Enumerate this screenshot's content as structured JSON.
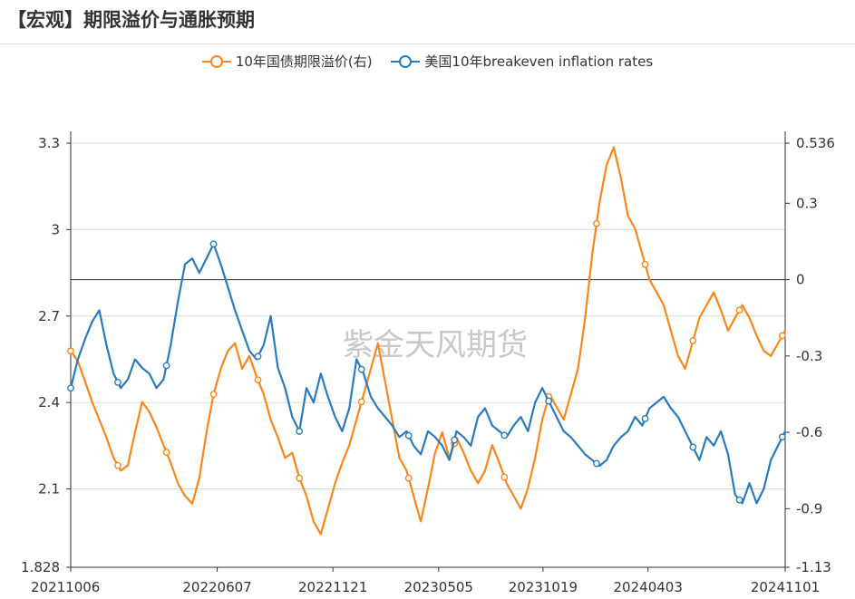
{
  "title": "【宏观】期限溢价与通胀预期",
  "watermark": "紫金天风期货",
  "colors": {
    "orange": "#f5871f",
    "blue": "#2b7bba",
    "grid": "#d8d8d8",
    "axis": "#333333"
  },
  "chart_data": {
    "type": "line",
    "x_tick_labels": [
      "20211006",
      "20220607",
      "20221121",
      "20230505",
      "20231019",
      "20240403",
      "20241101"
    ],
    "x_tick_positions": [
      0.0,
      0.205,
      0.367,
      0.515,
      0.661,
      0.808,
      1.0
    ],
    "y_left": {
      "min": 1.828,
      "max": 3.3,
      "ticks": [
        3.3,
        3.0,
        2.7,
        2.4,
        2.1,
        1.828
      ],
      "tick_labels": [
        "3.3",
        "3",
        "2.7",
        "2.4",
        "2.1",
        "1.828"
      ]
    },
    "y_right": {
      "min": -1.13,
      "max": 0.536,
      "ticks": [
        0.536,
        0.3,
        0,
        -0.3,
        -0.6,
        -0.9,
        -1.13
      ],
      "tick_labels": [
        "0.536",
        "0.3",
        "0",
        "-0.3",
        "-0.6",
        "-0.9",
        "-1.13"
      ]
    },
    "series": [
      {
        "name": "10年国债期限溢价(右)",
        "axis": "right",
        "color": "#f5871f",
        "x": [
          0.0,
          0.01,
          0.02,
          0.03,
          0.04,
          0.05,
          0.06,
          0.07,
          0.08,
          0.09,
          0.1,
          0.11,
          0.12,
          0.13,
          0.14,
          0.15,
          0.16,
          0.17,
          0.18,
          0.19,
          0.2,
          0.21,
          0.22,
          0.23,
          0.24,
          0.25,
          0.26,
          0.27,
          0.28,
          0.29,
          0.3,
          0.31,
          0.32,
          0.33,
          0.34,
          0.35,
          0.36,
          0.37,
          0.38,
          0.39,
          0.4,
          0.41,
          0.42,
          0.43,
          0.44,
          0.45,
          0.46,
          0.47,
          0.48,
          0.49,
          0.5,
          0.51,
          0.52,
          0.53,
          0.54,
          0.55,
          0.56,
          0.57,
          0.58,
          0.59,
          0.6,
          0.61,
          0.62,
          0.63,
          0.64,
          0.65,
          0.66,
          0.67,
          0.68,
          0.69,
          0.7,
          0.71,
          0.72,
          0.73,
          0.74,
          0.75,
          0.76,
          0.77,
          0.78,
          0.79,
          0.8,
          0.81,
          0.82,
          0.83,
          0.84,
          0.85,
          0.86,
          0.87,
          0.88,
          0.89,
          0.9,
          0.91,
          0.92,
          0.93,
          0.94,
          0.95,
          0.96,
          0.97,
          0.98,
          0.99,
          1.0
        ],
        "values": [
          -0.28,
          -0.32,
          -0.4,
          -0.48,
          -0.55,
          -0.62,
          -0.7,
          -0.75,
          -0.73,
          -0.6,
          -0.48,
          -0.52,
          -0.58,
          -0.65,
          -0.72,
          -0.8,
          -0.85,
          -0.88,
          -0.78,
          -0.6,
          -0.45,
          -0.35,
          -0.28,
          -0.25,
          -0.35,
          -0.3,
          -0.38,
          -0.45,
          -0.55,
          -0.62,
          -0.7,
          -0.68,
          -0.78,
          -0.85,
          -0.95,
          -1.0,
          -0.9,
          -0.8,
          -0.72,
          -0.65,
          -0.55,
          -0.45,
          -0.35,
          -0.25,
          -0.4,
          -0.55,
          -0.7,
          -0.75,
          -0.85,
          -0.95,
          -0.82,
          -0.68,
          -0.6,
          -0.7,
          -0.62,
          -0.68,
          -0.75,
          -0.8,
          -0.75,
          -0.65,
          -0.72,
          -0.8,
          -0.85,
          -0.9,
          -0.82,
          -0.7,
          -0.55,
          -0.45,
          -0.5,
          -0.55,
          -0.45,
          -0.35,
          -0.15,
          0.1,
          0.3,
          0.45,
          0.52,
          0.4,
          0.25,
          0.2,
          0.1,
          0.0,
          -0.05,
          -0.1,
          -0.2,
          -0.3,
          -0.35,
          -0.25,
          -0.15,
          -0.1,
          -0.05,
          -0.12,
          -0.2,
          -0.15,
          -0.1,
          -0.15,
          -0.22,
          -0.28,
          -0.3,
          -0.25,
          -0.2
        ]
      },
      {
        "name": "美国10年breakeven inflation rates",
        "axis": "left",
        "color": "#2b7bba",
        "x": [
          0.0,
          0.01,
          0.02,
          0.03,
          0.04,
          0.05,
          0.06,
          0.07,
          0.08,
          0.09,
          0.1,
          0.11,
          0.12,
          0.13,
          0.14,
          0.15,
          0.16,
          0.17,
          0.18,
          0.19,
          0.2,
          0.21,
          0.22,
          0.23,
          0.24,
          0.25,
          0.26,
          0.27,
          0.28,
          0.29,
          0.3,
          0.31,
          0.32,
          0.33,
          0.34,
          0.35,
          0.36,
          0.37,
          0.38,
          0.39,
          0.4,
          0.41,
          0.42,
          0.43,
          0.44,
          0.45,
          0.46,
          0.47,
          0.48,
          0.49,
          0.5,
          0.51,
          0.52,
          0.53,
          0.54,
          0.55,
          0.56,
          0.57,
          0.58,
          0.59,
          0.6,
          0.61,
          0.62,
          0.63,
          0.64,
          0.65,
          0.66,
          0.67,
          0.68,
          0.69,
          0.7,
          0.71,
          0.72,
          0.73,
          0.74,
          0.75,
          0.76,
          0.77,
          0.78,
          0.79,
          0.8,
          0.81,
          0.82,
          0.83,
          0.84,
          0.85,
          0.86,
          0.87,
          0.88,
          0.89,
          0.9,
          0.91,
          0.92,
          0.93,
          0.94,
          0.95,
          0.96,
          0.97,
          0.98,
          0.99,
          1.0
        ],
        "values": [
          2.45,
          2.55,
          2.62,
          2.68,
          2.72,
          2.6,
          2.5,
          2.45,
          2.48,
          2.55,
          2.52,
          2.5,
          2.45,
          2.48,
          2.6,
          2.75,
          2.88,
          2.9,
          2.85,
          2.9,
          2.95,
          2.88,
          2.8,
          2.72,
          2.65,
          2.58,
          2.55,
          2.6,
          2.7,
          2.52,
          2.45,
          2.35,
          2.3,
          2.45,
          2.4,
          2.5,
          2.42,
          2.35,
          2.3,
          2.38,
          2.55,
          2.5,
          2.42,
          2.38,
          2.35,
          2.32,
          2.28,
          2.3,
          2.25,
          2.22,
          2.3,
          2.28,
          2.25,
          2.2,
          2.3,
          2.28,
          2.25,
          2.35,
          2.38,
          2.32,
          2.3,
          2.28,
          2.32,
          2.35,
          2.3,
          2.4,
          2.45,
          2.4,
          2.35,
          2.3,
          2.28,
          2.25,
          2.22,
          2.2,
          2.18,
          2.2,
          2.25,
          2.28,
          2.3,
          2.35,
          2.32,
          2.38,
          2.4,
          2.42,
          2.38,
          2.35,
          2.3,
          2.25,
          2.2,
          2.28,
          2.25,
          2.3,
          2.22,
          2.08,
          2.05,
          2.12,
          2.05,
          2.1,
          2.2,
          2.25,
          2.3
        ]
      }
    ],
    "marker_x": [
      0.0,
      0.066,
      0.134,
      0.2,
      0.262,
      0.32,
      0.407,
      0.473,
      0.537,
      0.607,
      0.669,
      0.736,
      0.804,
      0.871,
      0.936,
      0.996
    ]
  }
}
